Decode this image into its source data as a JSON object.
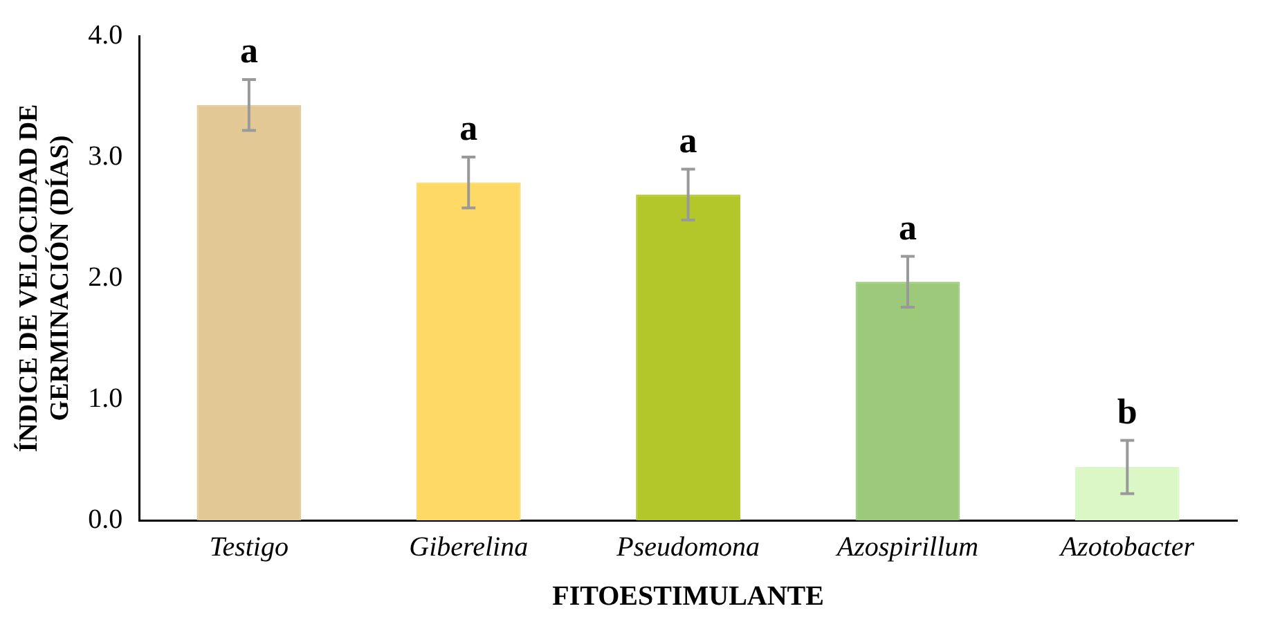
{
  "chart_data": {
    "type": "bar",
    "xlabel": "FITOESTIMULANTE",
    "ylabel": "ÍNDICE DE VELOCIDAD DE GERMINACIÓN (DÍAS)",
    "categories": [
      "Testigo",
      "Giberelina",
      "Pseudomona",
      "Azospirillum",
      "Azotobacter"
    ],
    "values": [
      3.43,
      2.79,
      2.69,
      1.97,
      0.44
    ],
    "errors": [
      0.21,
      0.21,
      0.21,
      0.21,
      0.22
    ],
    "colors": [
      "#e2c894",
      "#ffd966",
      "#b3c72b",
      "#9cc97a",
      "#dbf7c6"
    ],
    "ylim": [
      0,
      4
    ],
    "yticks": [
      {
        "value": 0,
        "label": "0.0"
      },
      {
        "value": 1,
        "label": "1.0"
      },
      {
        "value": 2,
        "label": "2.0"
      },
      {
        "value": 3,
        "label": "3.0"
      },
      {
        "value": 4,
        "label": "4.0"
      }
    ],
    "grid": false,
    "legend": false,
    "annotations": [
      "a",
      "a",
      "a",
      "a",
      "b"
    ]
  }
}
